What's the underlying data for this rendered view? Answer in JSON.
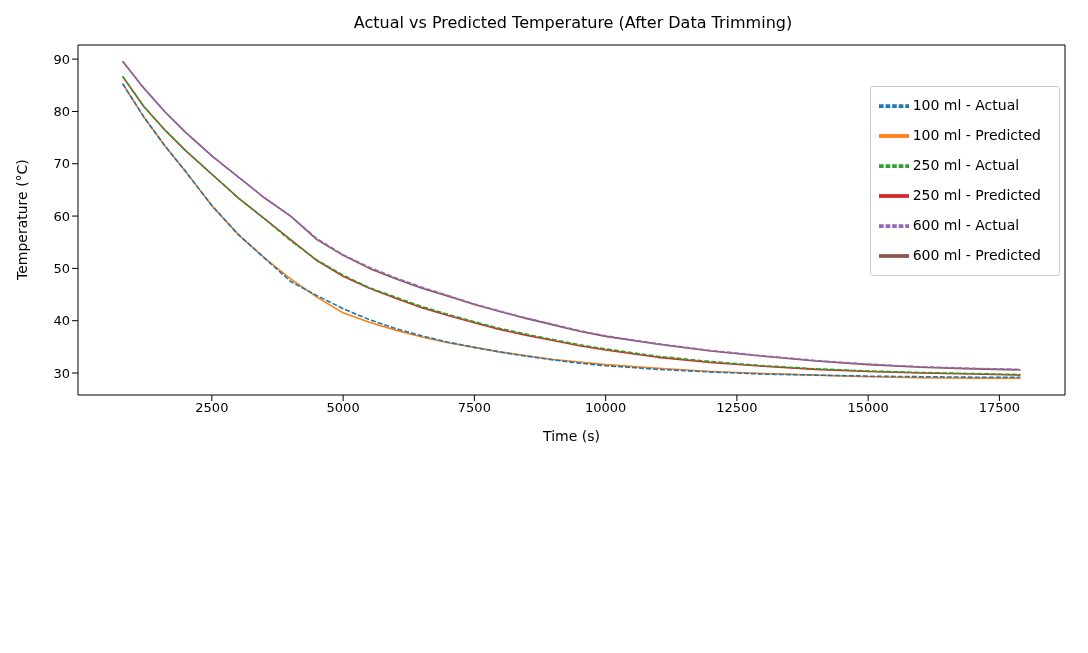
{
  "chart_data": {
    "type": "line",
    "title": "Actual vs Predicted Temperature (After Data Trimming)",
    "xlabel": "Time (s)",
    "ylabel": "Temperature (°C)",
    "xlim": [
      -50,
      18750
    ],
    "xticks": [
      2500,
      5000,
      7500,
      10000,
      12500,
      15000,
      17500
    ],
    "ylim": [
      25.8,
      92.7
    ],
    "yticks": [
      30,
      40,
      50,
      60,
      70,
      80,
      90
    ],
    "legend": "top right",
    "x": [
      800,
      1200,
      1600,
      2000,
      2500,
      3000,
      3500,
      4000,
      4500,
      5000,
      5500,
      6000,
      6500,
      7000,
      7500,
      8000,
      8500,
      9000,
      9500,
      10000,
      11000,
      12000,
      13000,
      14000,
      15000,
      16000,
      17000,
      17900
    ],
    "series": [
      {
        "name": "100 ml - Actual",
        "color": "#1f77b4",
        "line_style": "dashed",
        "values": [
          85.3,
          79,
          73.5,
          68.5,
          62,
          56.5,
          52,
          47.5,
          44.8,
          42.3,
          40.2,
          38.5,
          37.1,
          35.9,
          34.9,
          34,
          33.2,
          32.5,
          31.9,
          31.4,
          30.7,
          30.2,
          29.8,
          29.6,
          29.4,
          29.3,
          29.2,
          29.2
        ]
      },
      {
        "name": "100 ml - Predicted",
        "color": "#ff7f0e",
        "line_style": "solid",
        "values": [
          85.3,
          79,
          73.5,
          68.5,
          62,
          56.5,
          52,
          48,
          44.5,
          41.5,
          39.7,
          38.2,
          36.9,
          35.8,
          34.9,
          34,
          33.3,
          32.6,
          32.1,
          31.6,
          30.9,
          30.3,
          29.9,
          29.6,
          29.3,
          29.1,
          29,
          29
        ]
      },
      {
        "name": "250 ml - Actual",
        "color": "#2ca02c",
        "line_style": "dashed",
        "values": [
          86.7,
          81,
          76.5,
          72.5,
          68,
          63.5,
          59.5,
          55.3,
          51.6,
          48.7,
          46.3,
          44.5,
          42.7,
          41.2,
          39.8,
          38.5,
          37.4,
          36.4,
          35.4,
          34.6,
          33.2,
          32.2,
          31.4,
          30.8,
          30.4,
          30.1,
          29.9,
          29.7
        ]
      },
      {
        "name": "250 ml - Predicted",
        "color": "#d62728",
        "line_style": "solid",
        "values": [
          86.7,
          81,
          76.5,
          72.5,
          68,
          63.5,
          59.5,
          55.5,
          51.5,
          48.5,
          46.2,
          44.3,
          42.5,
          41,
          39.6,
          38.3,
          37.2,
          36.2,
          35.2,
          34.4,
          33,
          32,
          31.3,
          30.7,
          30.3,
          30,
          29.8,
          29.6
        ]
      },
      {
        "name": "600 ml - Actual",
        "color": "#9467bd",
        "line_style": "dashed",
        "values": [
          89.6,
          84.5,
          80,
          76,
          71.5,
          67.5,
          63.5,
          60,
          55.7,
          52.6,
          50.2,
          48.2,
          46.4,
          44.8,
          43.2,
          41.8,
          40.5,
          39.3,
          38.1,
          37.1,
          35.6,
          34.3,
          33.3,
          32.4,
          31.7,
          31.2,
          30.9,
          30.7
        ]
      },
      {
        "name": "600 ml - Predicted",
        "color": "#8c564b",
        "line_style": "solid",
        "values": [
          89.6,
          84.5,
          80,
          76,
          71.5,
          67.5,
          63.5,
          60,
          55.5,
          52.5,
          50,
          48,
          46.2,
          44.7,
          43.1,
          41.7,
          40.4,
          39.2,
          38,
          37,
          35.5,
          34.2,
          33.2,
          32.3,
          31.6,
          31.1,
          30.8,
          30.6
        ]
      }
    ]
  }
}
